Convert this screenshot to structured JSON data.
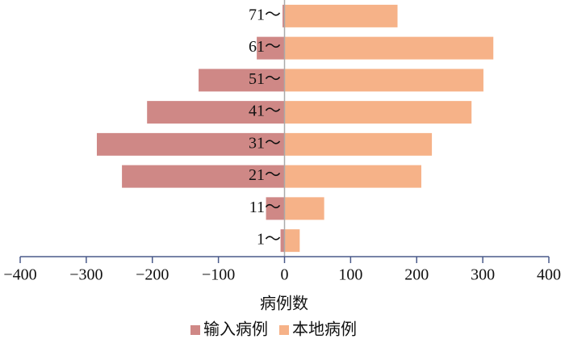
{
  "chart_data": {
    "type": "diverging-bar",
    "orientation": "horizontal",
    "x_label": "病例数",
    "categories": [
      "1～",
      "11～",
      "21～",
      "31～",
      "41～",
      "51～",
      "61～",
      "71～"
    ],
    "series": [
      {
        "name": "输入病例",
        "color": "#cf8886",
        "values": [
          -6,
          -28,
          -246,
          -284,
          -208,
          -130,
          -42,
          -3
        ]
      },
      {
        "name": "本地病例",
        "color": "#f6b288",
        "values": [
          23,
          60,
          207,
          223,
          283,
          301,
          316,
          171
        ]
      }
    ],
    "xlim": [
      -400,
      400
    ],
    "xticks": [
      {
        "value": -400,
        "label": "−400"
      },
      {
        "value": -300,
        "label": "−300"
      },
      {
        "value": -200,
        "label": "−200"
      },
      {
        "value": -100,
        "label": "−100"
      },
      0,
      100,
      200,
      300,
      400
    ],
    "legend": "bottom"
  }
}
